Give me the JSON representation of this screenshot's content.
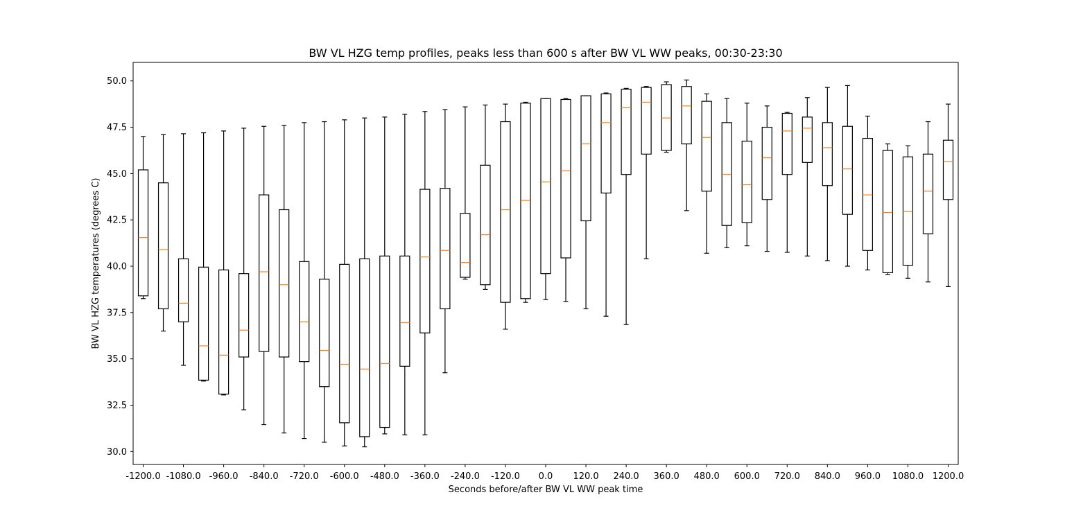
{
  "chart_data": {
    "type": "boxplot",
    "title": "BW VL HZG temp profiles, peaks less than 600 s after BW VL WW peaks, 00:30-23:30",
    "xlabel": "Seconds before/after BW VL WW peak time",
    "ylabel": "BW VL HZG temperatures (degrees C)",
    "ylim": [
      29.3,
      51.0
    ],
    "xlim": [
      -1230,
      1230
    ],
    "y_ticks": [
      "30.0",
      "32.5",
      "35.0",
      "37.5",
      "40.0",
      "42.5",
      "45.0",
      "47.5",
      "50.0"
    ],
    "x_ticks": [
      "-1200.0",
      "-1080.0",
      "-960.0",
      "-840.0",
      "-720.0",
      "-600.0",
      "-480.0",
      "-360.0",
      "-240.0",
      "-120.0",
      "0.0",
      "120.0",
      "240.0",
      "360.0",
      "480.0",
      "600.0",
      "720.0",
      "840.0",
      "960.0",
      "1080.0",
      "1200.0"
    ],
    "grid": false,
    "colors": {
      "box": "#000000",
      "median": "#ff7f0e"
    },
    "boxes": [
      {
        "x": -1200,
        "whislo": 38.25,
        "q1": 38.4,
        "med": 41.55,
        "q3": 45.2,
        "whishi": 47.0
      },
      {
        "x": -1140,
        "whislo": 36.5,
        "q1": 37.7,
        "med": 40.9,
        "q3": 44.5,
        "whishi": 47.1
      },
      {
        "x": -1080,
        "whislo": 34.65,
        "q1": 37.0,
        "med": 38.0,
        "q3": 40.4,
        "whishi": 47.15
      },
      {
        "x": -1020,
        "whislo": 33.8,
        "q1": 33.85,
        "med": 35.7,
        "q3": 39.95,
        "whishi": 47.2
      },
      {
        "x": -960,
        "whislo": 33.05,
        "q1": 33.1,
        "med": 35.2,
        "q3": 39.8,
        "whishi": 47.3
      },
      {
        "x": -900,
        "whislo": 32.25,
        "q1": 35.1,
        "med": 36.55,
        "q3": 39.6,
        "whishi": 47.45
      },
      {
        "x": -840,
        "whislo": 31.45,
        "q1": 35.4,
        "med": 39.7,
        "q3": 43.85,
        "whishi": 47.55
      },
      {
        "x": -780,
        "whislo": 31.0,
        "q1": 35.1,
        "med": 39.0,
        "q3": 43.05,
        "whishi": 47.6
      },
      {
        "x": -720,
        "whislo": 30.7,
        "q1": 34.85,
        "med": 37.0,
        "q3": 40.25,
        "whishi": 47.75
      },
      {
        "x": -660,
        "whislo": 30.5,
        "q1": 33.5,
        "med": 35.45,
        "q3": 39.3,
        "whishi": 47.8
      },
      {
        "x": -600,
        "whislo": 30.3,
        "q1": 31.55,
        "med": 34.7,
        "q3": 40.1,
        "whishi": 47.9
      },
      {
        "x": -540,
        "whislo": 30.25,
        "q1": 30.8,
        "med": 34.45,
        "q3": 40.4,
        "whishi": 48.0
      },
      {
        "x": -480,
        "whislo": 30.95,
        "q1": 31.3,
        "med": 34.75,
        "q3": 40.55,
        "whishi": 48.05
      },
      {
        "x": -420,
        "whislo": 30.9,
        "q1": 34.6,
        "med": 36.95,
        "q3": 40.55,
        "whishi": 48.2
      },
      {
        "x": -360,
        "whislo": 30.9,
        "q1": 36.4,
        "med": 40.5,
        "q3": 44.15,
        "whishi": 48.35
      },
      {
        "x": -300,
        "whislo": 34.25,
        "q1": 37.7,
        "med": 40.85,
        "q3": 44.2,
        "whishi": 48.45
      },
      {
        "x": -240,
        "whislo": 39.3,
        "q1": 39.4,
        "med": 40.2,
        "q3": 42.85,
        "whishi": 48.6
      },
      {
        "x": -180,
        "whislo": 38.75,
        "q1": 39.0,
        "med": 41.7,
        "q3": 45.45,
        "whishi": 48.7
      },
      {
        "x": -120,
        "whislo": 36.6,
        "q1": 38.05,
        "med": 43.05,
        "q3": 47.8,
        "whishi": 48.75
      },
      {
        "x": -60,
        "whislo": 38.05,
        "q1": 38.25,
        "med": 43.55,
        "q3": 48.8,
        "whishi": 48.85
      },
      {
        "x": 0,
        "whislo": 38.2,
        "q1": 39.6,
        "med": 44.55,
        "q3": 49.05,
        "whishi": 49.05
      },
      {
        "x": 60,
        "whislo": 38.1,
        "q1": 40.45,
        "med": 45.15,
        "q3": 49.0,
        "whishi": 49.05
      },
      {
        "x": 120,
        "whislo": 37.7,
        "q1": 42.45,
        "med": 46.6,
        "q3": 49.2,
        "whishi": 49.2
      },
      {
        "x": 180,
        "whislo": 37.3,
        "q1": 43.95,
        "med": 47.75,
        "q3": 49.3,
        "whishi": 49.35
      },
      {
        "x": 240,
        "whislo": 36.85,
        "q1": 44.95,
        "med": 48.55,
        "q3": 49.55,
        "whishi": 49.6
      },
      {
        "x": 300,
        "whislo": 40.4,
        "q1": 46.05,
        "med": 48.85,
        "q3": 49.65,
        "whishi": 49.7
      },
      {
        "x": 360,
        "whislo": 46.15,
        "q1": 46.25,
        "med": 48.0,
        "q3": 49.8,
        "whishi": 49.95
      },
      {
        "x": 420,
        "whislo": 43.0,
        "q1": 46.6,
        "med": 48.65,
        "q3": 49.7,
        "whishi": 50.05
      },
      {
        "x": 480,
        "whislo": 40.7,
        "q1": 44.05,
        "med": 46.95,
        "q3": 48.9,
        "whishi": 49.3
      },
      {
        "x": 540,
        "whislo": 41.0,
        "q1": 42.2,
        "med": 44.95,
        "q3": 47.75,
        "whishi": 49.05
      },
      {
        "x": 600,
        "whislo": 41.1,
        "q1": 42.35,
        "med": 44.4,
        "q3": 46.75,
        "whishi": 48.8
      },
      {
        "x": 660,
        "whislo": 40.8,
        "q1": 43.6,
        "med": 45.85,
        "q3": 47.5,
        "whishi": 48.65
      },
      {
        "x": 720,
        "whislo": 40.75,
        "q1": 44.95,
        "med": 47.3,
        "q3": 48.25,
        "whishi": 48.3
      },
      {
        "x": 780,
        "whislo": 40.55,
        "q1": 45.6,
        "med": 47.45,
        "q3": 48.05,
        "whishi": 49.1
      },
      {
        "x": 840,
        "whislo": 40.3,
        "q1": 44.35,
        "med": 46.4,
        "q3": 47.75,
        "whishi": 49.65
      },
      {
        "x": 900,
        "whislo": 40.0,
        "q1": 42.8,
        "med": 45.25,
        "q3": 47.55,
        "whishi": 49.75
      },
      {
        "x": 960,
        "whislo": 39.8,
        "q1": 40.85,
        "med": 43.85,
        "q3": 46.9,
        "whishi": 48.1
      },
      {
        "x": 1020,
        "whislo": 39.55,
        "q1": 39.65,
        "med": 42.9,
        "q3": 46.25,
        "whishi": 46.6
      },
      {
        "x": 1080,
        "whislo": 39.35,
        "q1": 40.05,
        "med": 42.95,
        "q3": 45.9,
        "whishi": 46.5
      },
      {
        "x": 1140,
        "whislo": 39.15,
        "q1": 41.75,
        "med": 44.05,
        "q3": 46.05,
        "whishi": 47.8
      },
      {
        "x": 1200,
        "whislo": 38.9,
        "q1": 43.6,
        "med": 45.65,
        "q3": 46.8,
        "whishi": 48.75
      }
    ]
  }
}
